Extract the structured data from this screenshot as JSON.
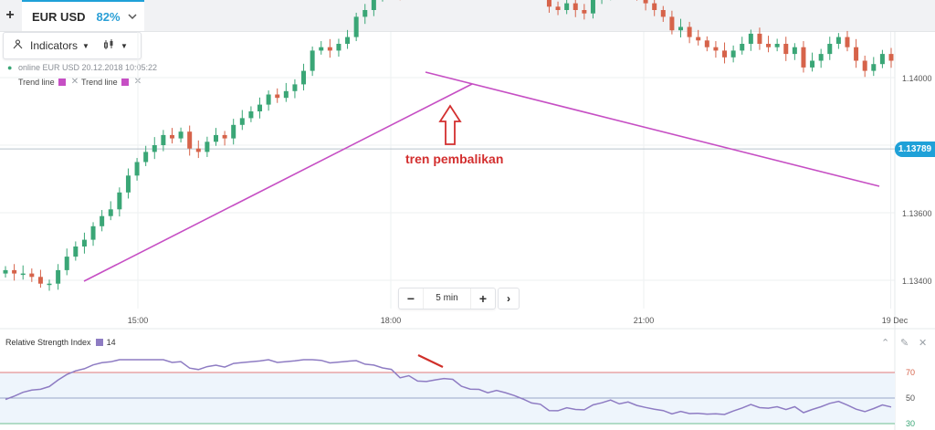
{
  "tab": {
    "add": "+",
    "symbol": "EUR USD",
    "payout": "82%"
  },
  "toolbar": {
    "indicators": "Indicators"
  },
  "info": {
    "line": "online EUR USD  20.12.2018 10:05:22"
  },
  "legend": {
    "trend1": "Trend line",
    "trend2": "Trend line",
    "remove": "✕"
  },
  "price_axis": {
    "labels": [
      {
        "text": "1.14000",
        "value": 1.14
      },
      {
        "text": "1.13600",
        "value": 1.136
      },
      {
        "text": "1.13400",
        "value": 1.134
      }
    ],
    "current": {
      "text": "1.13789",
      "value": 1.13789
    }
  },
  "time_axis": [
    {
      "text": "15:00",
      "x": 15.0
    },
    {
      "text": "18:00",
      "x": 18.0
    },
    {
      "text": "21:00",
      "x": 21.0
    },
    {
      "text": "19 Dec",
      "x": 23.93
    }
  ],
  "timeframe": {
    "minus": "−",
    "value": "5 min",
    "plus": "+",
    "next": "›"
  },
  "annotation": "tren pembalikan",
  "rsi": {
    "title": "Relative Strength Index",
    "period": "14",
    "levels": {
      "high": "70",
      "mid": "50",
      "low": "30"
    }
  },
  "colors": {
    "up": "#3aa676",
    "down": "#d6634a",
    "trend": "#c64fc4",
    "accent": "#1fa1d8",
    "annotation": "#d32f2f",
    "rsi": "#8e7cc3"
  },
  "chart_data": {
    "type": "line",
    "series": [
      {
        "values": [
          1.1343,
          1.1342,
          1.1342,
          1.1341,
          1.1339,
          1.1339,
          1.1343,
          1.1347,
          1.135,
          1.1352,
          1.1356,
          1.1359,
          1.1361,
          1.1366,
          1.1371,
          1.1375,
          1.1378,
          1.138,
          1.1383,
          1.1382,
          1.1384,
          1.1379,
          1.1378,
          1.1381,
          1.1383,
          1.1382,
          1.1386,
          1.1388,
          1.139,
          1.1392,
          1.1395,
          1.1394,
          1.1396,
          1.1398,
          1.1402,
          1.1408,
          1.1409,
          1.1408,
          1.141,
          1.1412,
          1.1418,
          1.142,
          1.1424,
          1.1426,
          1.1429,
          1.1425,
          1.143,
          1.1428,
          1.143,
          1.1434,
          1.1438,
          1.144,
          1.1436,
          1.1435,
          1.1436,
          1.1434,
          1.1437,
          1.1436,
          1.1434,
          1.1431,
          1.1428,
          1.1427,
          1.1421,
          1.142,
          1.1422,
          1.142,
          1.1419,
          1.1423,
          1.1425,
          1.1428,
          1.1425,
          1.1427,
          1.1424,
          1.1422,
          1.142,
          1.1418,
          1.1414,
          1.1415,
          1.1412,
          1.1411,
          1.1409,
          1.1408,
          1.1406,
          1.1408,
          1.141,
          1.1413,
          1.141,
          1.1409,
          1.141,
          1.1407,
          1.1409,
          1.1403,
          1.1405,
          1.1407,
          1.141,
          1.1412,
          1.1409,
          1.1405,
          1.1402,
          1.1404,
          1.1407,
          1.1405
        ]
      }
    ]
  }
}
